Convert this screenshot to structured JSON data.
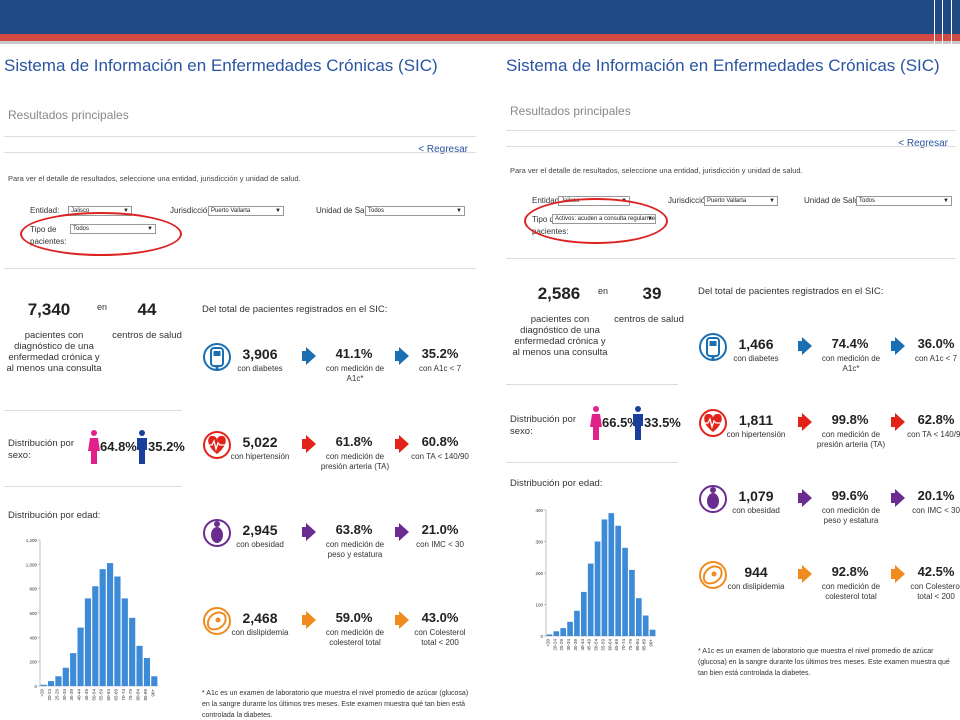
{
  "colors": {
    "header": "#1f4a84",
    "accent_red": "#d24a43",
    "link": "#2a55a0",
    "bar": "#3d8ad6",
    "female": "#e0218a",
    "male": "#1a3f9a",
    "diabetes": "#1a6fb3",
    "hypertension": "#e2231a",
    "obesity": "#6a2c91",
    "dyslipidemia": "#f08c1f"
  },
  "panels": [
    {
      "sys_title": "Sistema de Información en Enfermedades Crónicas (SIC)",
      "subtitle": "Resultados principales",
      "back_link": "< Regresar",
      "instructions": "Para ver el detalle de resultados, seleccione una entidad, jurisdicción y unidad de salud.",
      "filters": {
        "entidad_label": "Entidad:",
        "entidad_value": "Jalisco",
        "jurisdiccion_label": "Jurisdicción:",
        "jurisdiccion_value": "Puerto Vallarta",
        "unidad_label": "Unidad de Salud:",
        "unidad_value": "Todos",
        "tipo_label": "Tipo de pacientes:",
        "tipo_value": "Todos"
      },
      "summary": {
        "patients": "7,340",
        "en": "en",
        "centers": "44",
        "patients_desc": "pacientes con diagnóstico de una enfermedad crónica y al menos una consulta",
        "centers_desc": "centros de salud"
      },
      "total_title": "Del total de pacientes registrados en el SIC:",
      "sex": {
        "title": "Distribución por sexo:",
        "female": "64.8%",
        "male": "35.2%"
      },
      "age_title": "Distribución por edad:",
      "rows": [
        {
          "icon": "glucometer-icon",
          "count": "3,906",
          "count_label": "con diabetes",
          "pct1": "41.1%",
          "pct1_label": "con medición de A1c*",
          "pct2": "35.2%",
          "pct2_label": "con A1c < 7"
        },
        {
          "icon": "heart-icon",
          "count": "5,022",
          "count_label": "con hipertensión",
          "pct1": "61.8%",
          "pct1_label": "con medición de presión arteria (TA)",
          "pct2": "60.8%",
          "pct2_label": "con TA < 140/90"
        },
        {
          "icon": "body-icon",
          "count": "2,945",
          "count_label": "con obesidad",
          "pct1": "63.8%",
          "pct1_label": "con medición de peso y estatura",
          "pct2": "21.0%",
          "pct2_label": "con IMC < 30"
        },
        {
          "icon": "meat-icon",
          "count": "2,468",
          "count_label": "con dislipidemia",
          "pct1": "59.0%",
          "pct1_label": "con medición de colesterol total",
          "pct2": "43.0%",
          "pct2_label": "con Colesterol total < 200"
        }
      ],
      "footnote": "* A1c es un examen de laboratorio que muestra el nivel promedio de azúcar (glucosa) en la sangre durante los últimos tres meses. Este examen muestra qué tan bien está controlada la diabetes."
    },
    {
      "sys_title": "Sistema de Información en Enfermedades Crónicas (SIC)",
      "subtitle": "Resultados principales",
      "back_link": "< Regresar",
      "instructions": "Para ver el detalle de resultados, seleccione una entidad, jurisdicción y unidad de salud.",
      "filters": {
        "entidad_label": "Entidad:",
        "entidad_value": "Jalisco",
        "jurisdiccion_label": "Jurisdicción:",
        "jurisdiccion_value": "Puerto Vallarta",
        "unidad_label": "Unidad de Salud:",
        "unidad_value": "Todos",
        "tipo_label": "Tipo de pacientes:",
        "tipo_value": "Activos: acuden a consulta regularmente"
      },
      "summary": {
        "patients": "2,586",
        "en": "en",
        "centers": "39",
        "patients_desc": "pacientes con diagnóstico de una enfermedad crónica y al menos una consulta",
        "centers_desc": "centros de salud"
      },
      "total_title": "Del total de pacientes registrados en el SIC:",
      "sex": {
        "title": "Distribución por sexo:",
        "female": "66.5%",
        "male": "33.5%"
      },
      "age_title": "Distribución por edad:",
      "rows": [
        {
          "icon": "glucometer-icon",
          "count": "1,466",
          "count_label": "con diabetes",
          "pct1": "74.4%",
          "pct1_label": "con medición de A1c*",
          "pct2": "36.0%",
          "pct2_label": "con A1c < 7"
        },
        {
          "icon": "heart-icon",
          "count": "1,811",
          "count_label": "con hipertensión",
          "pct1": "99.8%",
          "pct1_label": "con medición de presión arteria (TA)",
          "pct2": "62.8%",
          "pct2_label": "con TA < 140/90"
        },
        {
          "icon": "body-icon",
          "count": "1,079",
          "count_label": "con obesidad",
          "pct1": "99.6%",
          "pct1_label": "con medición de peso y estatura",
          "pct2": "20.1%",
          "pct2_label": "con IMC < 30"
        },
        {
          "icon": "meat-icon",
          "count": "944",
          "count_label": "con dislipidemia",
          "pct1": "92.8%",
          "pct1_label": "con medición de colesterol total",
          "pct2": "42.5%",
          "pct2_label": "con Colesterol total < 200"
        }
      ],
      "footnote": "* A1c es un examen de laboratorio que muestra el nivel promedio de azúcar (glucosa) en la sangre durante los últimos tres meses. Este examen muestra qué tan bien está controlada la diabetes."
    }
  ],
  "chart_data": [
    {
      "type": "bar",
      "title": "Distribución por edad:",
      "categories": [
        "<20",
        "20-24",
        "25-29",
        "30-34",
        "35-39",
        "40-44",
        "45-49",
        "50-54",
        "55-59",
        "60-64",
        "65-69",
        "70-74",
        "75-79",
        "80-84",
        "85-89",
        "90+"
      ],
      "values": [
        10,
        40,
        80,
        150,
        270,
        480,
        720,
        820,
        960,
        1010,
        900,
        720,
        560,
        330,
        230,
        80
      ],
      "ylim": [
        0,
        1200
      ],
      "yticks": [
        0,
        200,
        400,
        600,
        800,
        1000,
        1200
      ],
      "yticklabels": [
        "0",
        "200",
        "400",
        "600",
        "800",
        "1,000",
        "1,200"
      ]
    },
    {
      "type": "bar",
      "title": "Distribución por edad:",
      "categories": [
        "<20",
        "20-24",
        "25-29",
        "30-34",
        "35-39",
        "40-44",
        "45-49",
        "50-54",
        "55-59",
        "60-64",
        "65-69",
        "70-74",
        "75-79",
        "80-84",
        "85-89",
        "90+"
      ],
      "values": [
        5,
        15,
        25,
        45,
        80,
        140,
        230,
        300,
        370,
        390,
        350,
        280,
        210,
        120,
        65,
        20
      ],
      "ylim": [
        0,
        400
      ],
      "yticks": [
        0,
        100,
        200,
        300,
        400
      ],
      "yticklabels": [
        "0",
        "100",
        "200",
        "300",
        "400"
      ]
    }
  ]
}
